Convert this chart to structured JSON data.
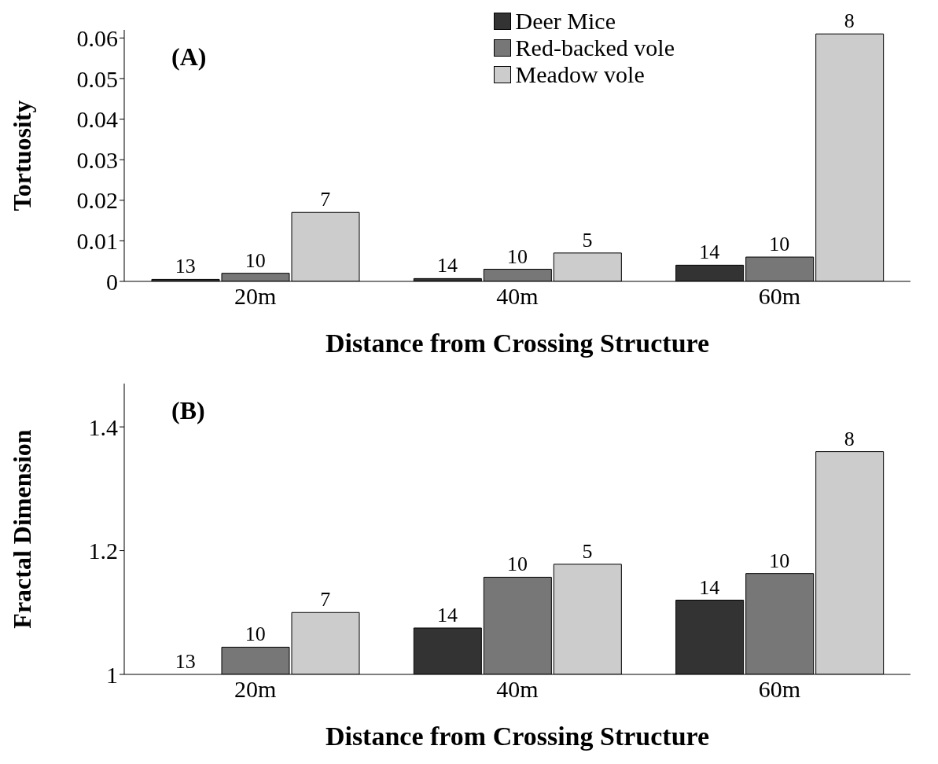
{
  "chart_data": [
    {
      "type": "bar",
      "xlabel": "Distance from Crossing Structure",
      "ylabel": "Tortuosity",
      "categories": [
        "20m",
        "40m",
        "60m"
      ],
      "series": [
        {
          "name": "Deer Mice",
          "color": "#333333",
          "values": [
            0.0005,
            0.0007,
            0.004
          ]
        },
        {
          "name": "Red-backed vole",
          "color": "#777777",
          "values": [
            0.002,
            0.003,
            0.006
          ]
        },
        {
          "name": "Meadow vole",
          "color": "#cccccc",
          "values": [
            0.017,
            0.007,
            0.061
          ]
        }
      ],
      "ylim": [
        0,
        0.062
      ],
      "yticks": [
        0,
        0.01,
        0.02,
        0.03,
        0.04,
        0.05,
        0.06
      ],
      "legend": "top right",
      "annotations": [
        "(A)",
        "13",
        "10",
        "7",
        "14",
        "10",
        "5",
        "14",
        "10",
        "8"
      ]
    },
    {
      "type": "bar",
      "xlabel": "Distance from Crossing Structure",
      "ylabel": "Fractal Dimension",
      "categories": [
        "20m",
        "40m",
        "60m"
      ],
      "series": [
        {
          "color": "#333333",
          "values": [
            1.0,
            1.075,
            1.12
          ]
        },
        {
          "color": "#777777",
          "values": [
            1.044,
            1.157,
            1.163
          ]
        },
        {
          "color": "#cccccc",
          "values": [
            1.1,
            1.178,
            1.36
          ]
        }
      ],
      "ylim": [
        1,
        1.47
      ],
      "yticks": [
        1,
        1.2,
        1.4
      ],
      "annotations": [
        "(B)",
        "13",
        "10",
        "7",
        "14",
        "10",
        "5",
        "14",
        "10",
        "8"
      ]
    }
  ]
}
